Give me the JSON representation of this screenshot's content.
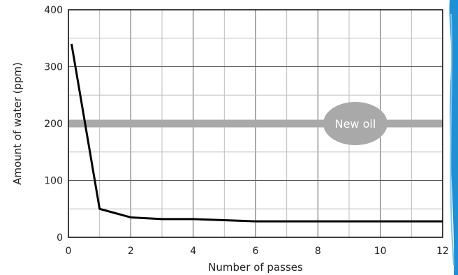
{
  "chart_data": {
    "type": "line",
    "title": "",
    "xlabel": "Number of passes",
    "ylabel": "Amount of water (ppm)",
    "xlim": [
      0,
      12
    ],
    "ylim": [
      0,
      400
    ],
    "x_ticks": [
      0,
      2,
      4,
      6,
      8,
      10,
      12
    ],
    "x_tick_labels": [
      "0",
      "2",
      "4",
      "6",
      "8",
      "10",
      "12"
    ],
    "y_ticks": [
      0,
      100,
      200,
      300,
      400
    ],
    "y_tick_labels": [
      "0",
      "100",
      "200",
      "300",
      "400"
    ],
    "grid": true,
    "series": [
      {
        "color": "#000000",
        "x": [
          0.1,
          1,
          2,
          3,
          4,
          5,
          6,
          7,
          8,
          9,
          10,
          11,
          12
        ],
        "y": [
          340,
          50,
          35,
          32,
          32,
          30,
          28,
          28,
          28,
          28,
          28,
          28,
          28
        ]
      }
    ],
    "reference_line": {
      "y": 200,
      "label": "New oil",
      "label_x": 9.2,
      "color": "#a9a9a9"
    }
  },
  "decoration": {
    "edge_stripe_color": "#1f8fd6"
  }
}
